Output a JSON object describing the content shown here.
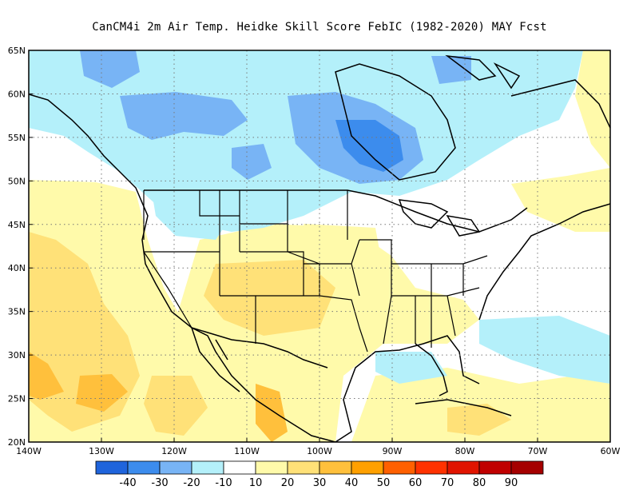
{
  "title": "CanCM4i  2m Air Temp. Heidke Skill Score FebIC (1982-2020) MAY Fcst",
  "map": {
    "lon_range": [
      -140,
      -60
    ],
    "lat_range": [
      20,
      65
    ],
    "lat_ticks": [
      {
        "lat": 65,
        "label": "65N"
      },
      {
        "lat": 60,
        "label": "60N"
      },
      {
        "lat": 55,
        "label": "55N"
      },
      {
        "lat": 50,
        "label": "50N"
      },
      {
        "lat": 45,
        "label": "45N"
      },
      {
        "lat": 40,
        "label": "40N"
      },
      {
        "lat": 35,
        "label": "35N"
      },
      {
        "lat": 30,
        "label": "30N"
      },
      {
        "lat": 25,
        "label": "25N"
      },
      {
        "lat": 20,
        "label": "20N"
      }
    ],
    "lon_ticks": [
      {
        "lon": -140,
        "label": "140W"
      },
      {
        "lon": -130,
        "label": "130W"
      },
      {
        "lon": -120,
        "label": "120W"
      },
      {
        "lon": -110,
        "label": "110W"
      },
      {
        "lon": -100,
        "label": "100W"
      },
      {
        "lon": -90,
        "label": "90W"
      },
      {
        "lon": -80,
        "label": "80W"
      },
      {
        "lon": -70,
        "label": "70W"
      },
      {
        "lon": -60,
        "label": "60W"
      }
    ],
    "grid": "dotted"
  },
  "colorbar": {
    "colors": [
      "#1f64dc",
      "#3c8ced",
      "#78b4f5",
      "#b4f0fa",
      "#ffffff",
      "#fffaaa",
      "#ffe178",
      "#ffc03c",
      "#ffa000",
      "#ff6000",
      "#ff3200",
      "#e11400",
      "#c00000",
      "#a50000"
    ],
    "labels": [
      "-40",
      "-30",
      "-20",
      "-10",
      "10",
      "20",
      "30",
      "40",
      "50",
      "60",
      "70",
      "80",
      "90"
    ]
  },
  "regions": {
    "skill_colors": {
      "light_blue": "#b4f0fa",
      "mid_blue": "#78b4f5",
      "blue": "#3c8ced",
      "dark_blue": "#1f64dc",
      "light_yellow": "#fffaaa",
      "yellow": "#ffe178",
      "orange": "#ffc03c"
    }
  }
}
